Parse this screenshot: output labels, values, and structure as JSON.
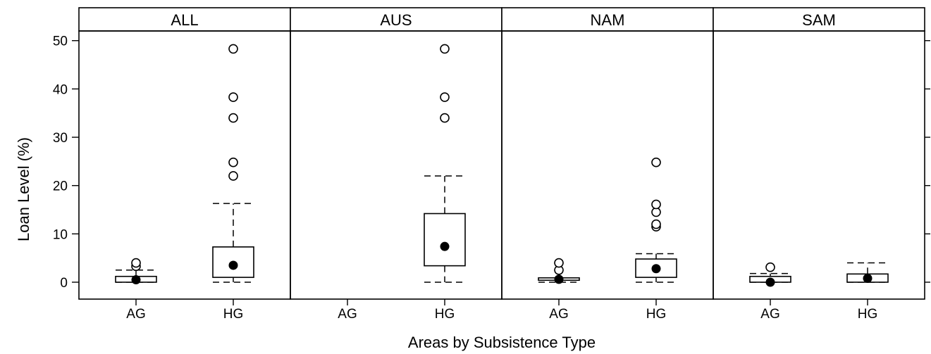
{
  "chart_data": {
    "type": "box",
    "xlabel": "Areas by Subsistence Type",
    "ylabel": "Loan Level (%)",
    "ylim": [
      -3.5,
      52
    ],
    "yticks": [
      0,
      10,
      20,
      30,
      40,
      50
    ],
    "categories": [
      "AG",
      "HG"
    ],
    "panels": [
      {
        "name": "ALL",
        "boxes": [
          {
            "category": "AG",
            "whisker_low": 0,
            "q1": 0,
            "median": 0.5,
            "q3": 1.2,
            "whisker_high": 2.5,
            "outliers": [
              3.3,
              4.0
            ]
          },
          {
            "category": "HG",
            "whisker_low": 0,
            "q1": 1.0,
            "median": 3.5,
            "q3": 7.3,
            "whisker_high": 16.3,
            "outliers": [
              22.0,
              24.8,
              34.0,
              38.3,
              48.3
            ]
          }
        ]
      },
      {
        "name": "AUS",
        "boxes": [
          {
            "category": "HG",
            "whisker_low": 0,
            "q1": 3.4,
            "median": 7.4,
            "q3": 14.2,
            "whisker_high": 22.0,
            "outliers": [
              34.0,
              38.3,
              48.3
            ]
          }
        ]
      },
      {
        "name": "NAM",
        "boxes": [
          {
            "category": "AG",
            "whisker_low": 0,
            "q1": 0.4,
            "median": 0.6,
            "q3": 0.9,
            "whisker_high": 0.9,
            "outliers": [
              2.5,
              4.0
            ]
          },
          {
            "category": "HG",
            "whisker_low": 0,
            "q1": 1.0,
            "median": 2.8,
            "q3": 4.8,
            "whisker_high": 5.9,
            "outliers": [
              11.5,
              12.0,
              14.5,
              16.1,
              24.8
            ]
          }
        ]
      },
      {
        "name": "SAM",
        "boxes": [
          {
            "category": "AG",
            "whisker_low": 0,
            "q1": 0,
            "median": 0,
            "q3": 1.2,
            "whisker_high": 1.8,
            "outliers": [
              3.1
            ]
          },
          {
            "category": "HG",
            "whisker_low": 0,
            "q1": 0,
            "median": 0.8,
            "q3": 1.7,
            "whisker_high": 4.0,
            "outliers": []
          }
        ]
      }
    ]
  }
}
